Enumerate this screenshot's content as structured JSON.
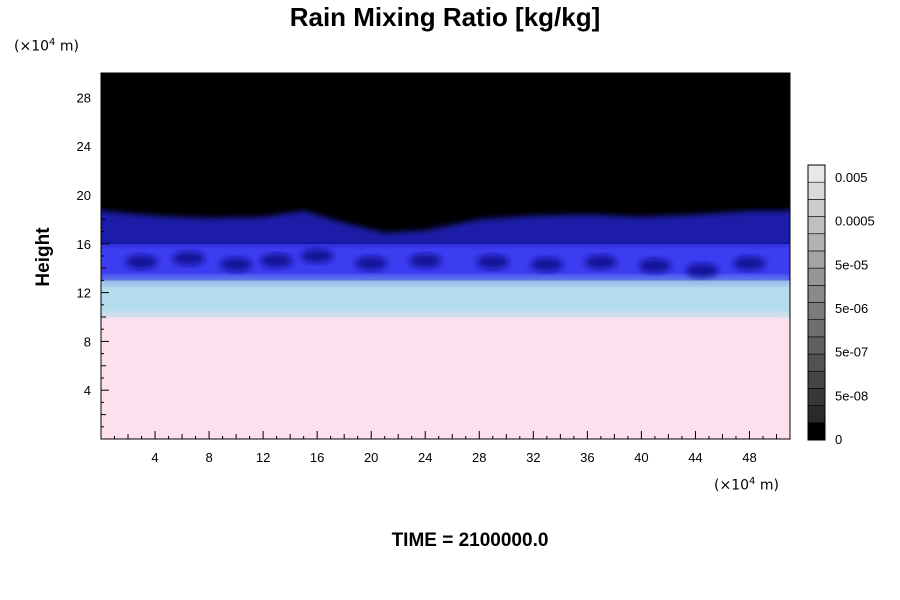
{
  "chart_data": {
    "type": "heatmap",
    "title": "Rain Mixing Ratio [kg/kg]",
    "ylabel": "Height",
    "xlabel": "",
    "x_unit": {
      "prefix": "(×10",
      "exponent": "4",
      "suffix": " m)"
    },
    "y_unit": {
      "prefix": "(×10",
      "exponent": "4",
      "suffix": " m)"
    },
    "xlim": [
      0,
      51
    ],
    "ylim": [
      0,
      30
    ],
    "x_ticks": [
      4,
      8,
      12,
      16,
      20,
      24,
      28,
      32,
      36,
      40,
      44,
      48
    ],
    "y_ticks": [
      4,
      8,
      12,
      16,
      20,
      24,
      28
    ],
    "colorbar": {
      "labels": [
        "0.005",
        "0.0005",
        "5e-05",
        "5e-06",
        "5e-07",
        "5e-08",
        "0"
      ],
      "levels": 16
    },
    "field_bands": [
      {
        "from": 0,
        "to": 10,
        "color": "#fce0ee"
      },
      {
        "from": 10,
        "to": 13,
        "color": "#b4dcec"
      },
      {
        "from": 13,
        "to": 16,
        "color": "#3c3cf0"
      },
      {
        "from": 16,
        "to": 19,
        "color": "#1010b4"
      },
      {
        "from": 19,
        "to": 30,
        "color": "#000000"
      }
    ],
    "cloud_top_profile": [
      [
        0,
        19.0
      ],
      [
        4,
        18.6
      ],
      [
        8,
        18.4
      ],
      [
        12,
        18.5
      ],
      [
        15,
        19.0
      ],
      [
        18,
        18.0
      ],
      [
        21,
        17.2
      ],
      [
        24,
        17.4
      ],
      [
        28,
        18.3
      ],
      [
        32,
        18.6
      ],
      [
        36,
        18.7
      ],
      [
        40,
        18.5
      ],
      [
        44,
        18.7
      ],
      [
        48,
        19.0
      ],
      [
        51,
        19.0
      ]
    ],
    "embedded_cores": [
      [
        3,
        14.5
      ],
      [
        6.5,
        14.8
      ],
      [
        10,
        14.3
      ],
      [
        13,
        14.6
      ],
      [
        16,
        15.0
      ],
      [
        20,
        14.4
      ],
      [
        24,
        14.6
      ],
      [
        29,
        14.5
      ],
      [
        33,
        14.3
      ],
      [
        37,
        14.5
      ],
      [
        41,
        14.2
      ],
      [
        44.5,
        13.8
      ],
      [
        48,
        14.4
      ]
    ]
  },
  "footer": {
    "time": "TIME = 2100000.0"
  }
}
